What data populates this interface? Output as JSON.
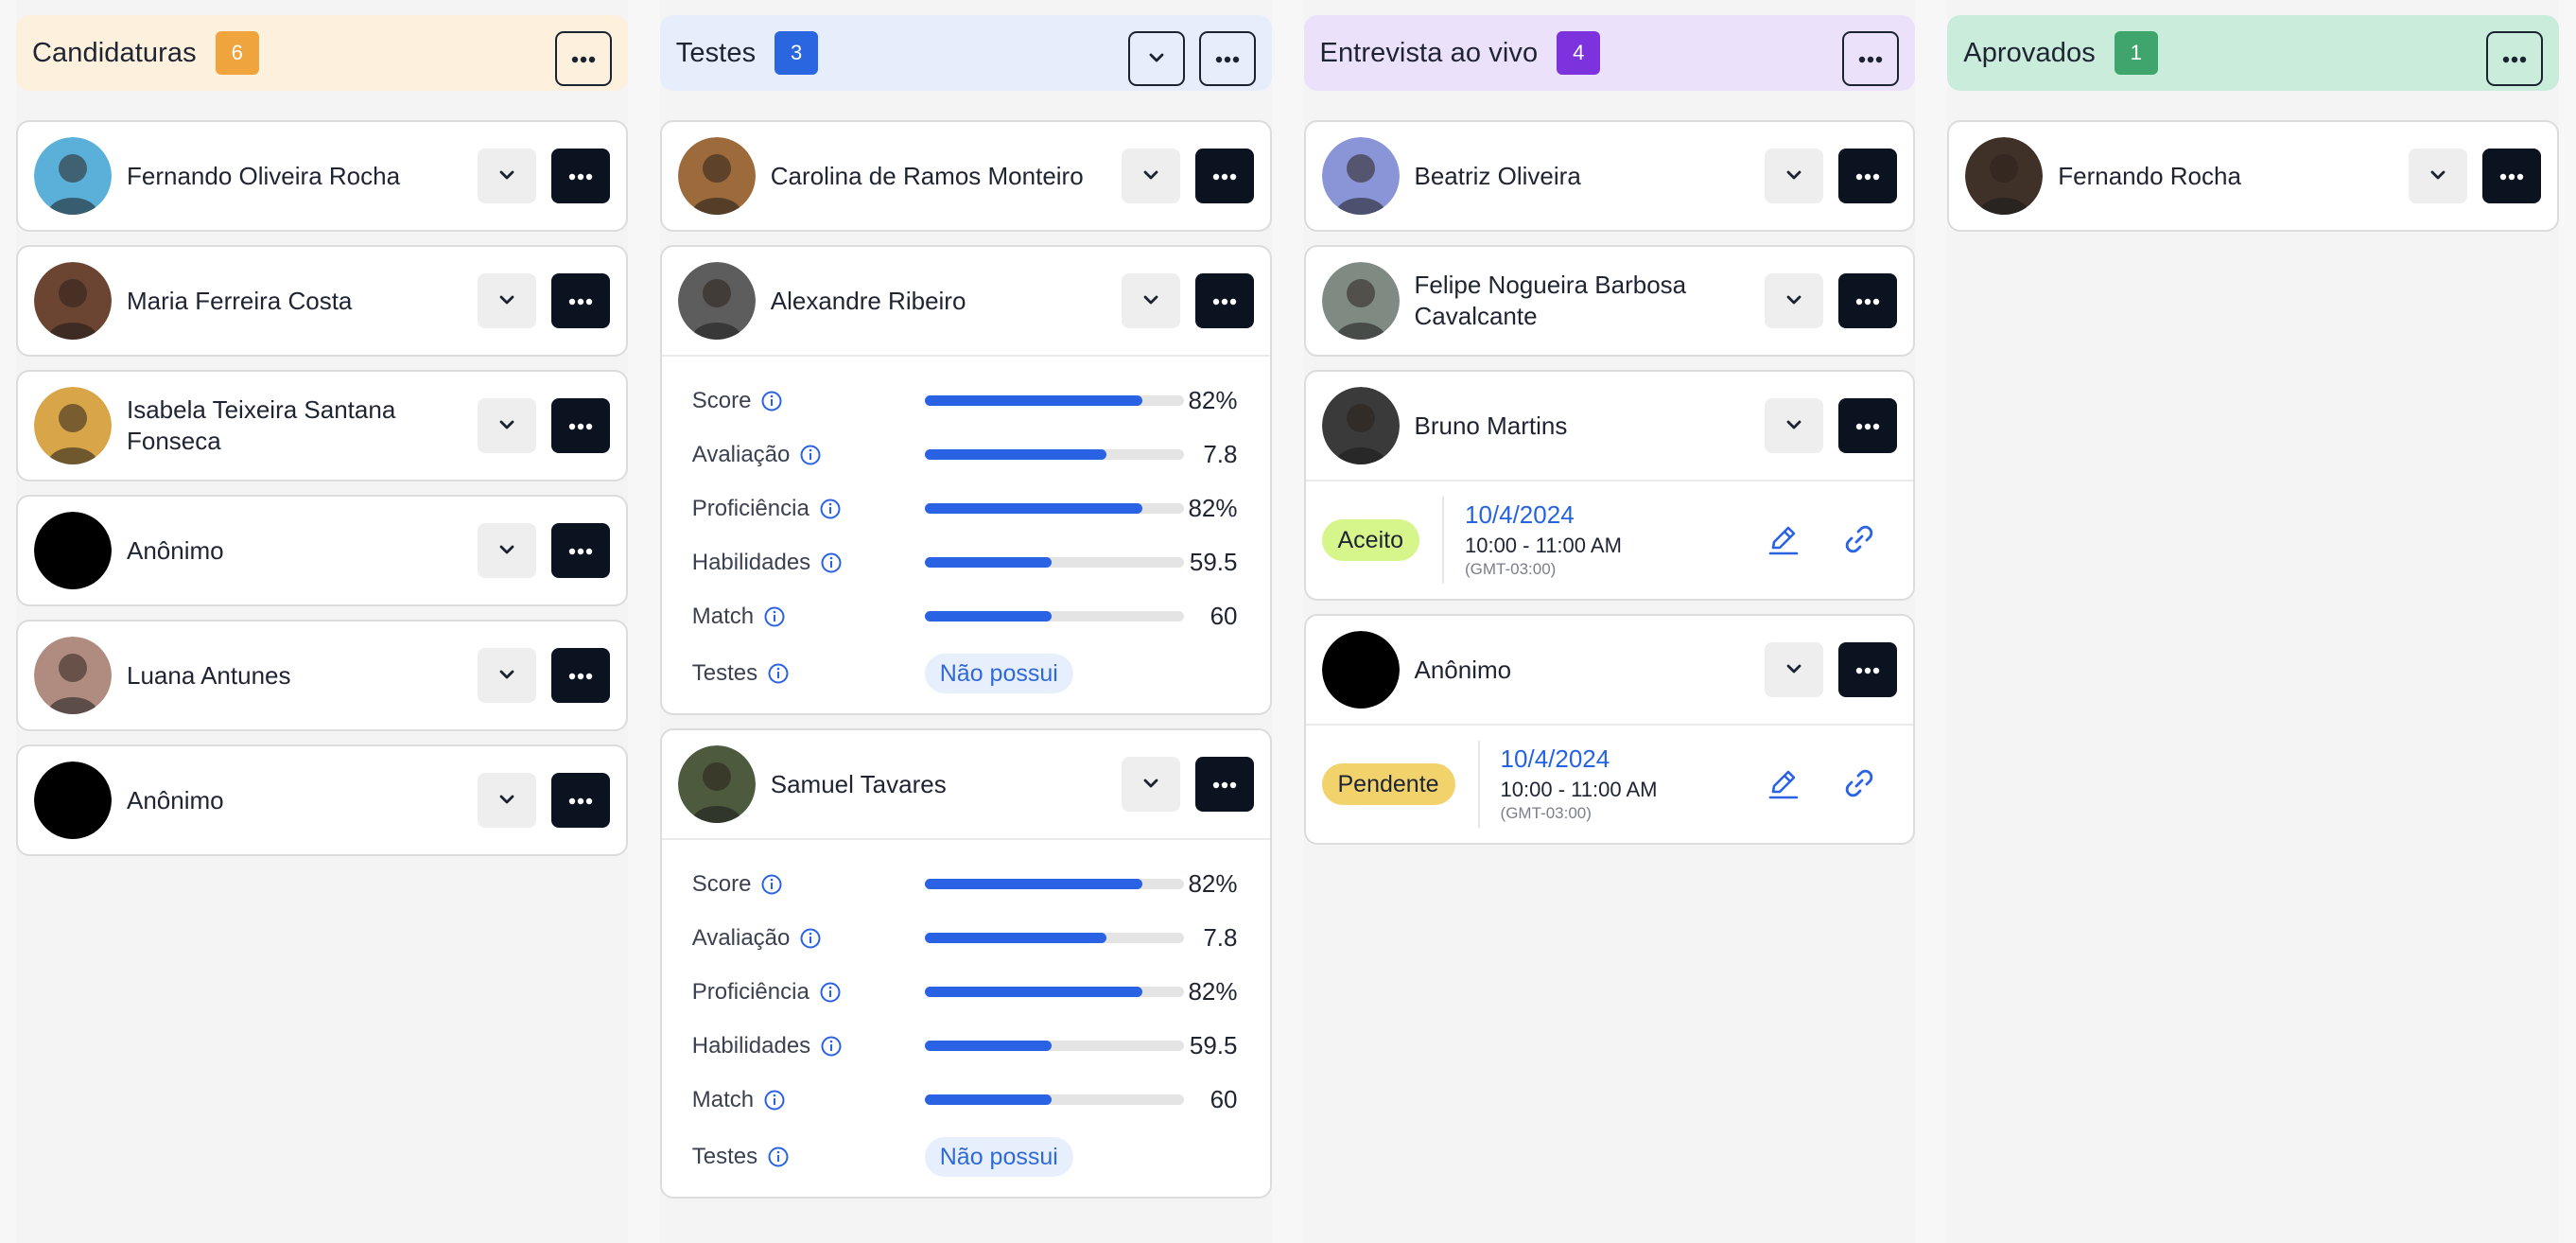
{
  "colors": {
    "accent_blue": "#2a62e4",
    "dark_button": "#0b1320"
  },
  "columns": [
    {
      "title": "Candidaturas",
      "count": "6",
      "header_bg": "#fdf0dc",
      "badge_color": "#efa43d",
      "has_collapse": false,
      "cards": [
        {
          "name": "Fernando Oliveira Rocha",
          "avatar": "photo",
          "avatar_color": "#5ab0d9"
        },
        {
          "name": "Maria Ferreira Costa",
          "avatar": "photo",
          "avatar_color": "#6b4432"
        },
        {
          "name": "Isabela Teixeira Santana Fonseca",
          "avatar": "photo",
          "avatar_color": "#d8a548"
        },
        {
          "name": "Anônimo",
          "avatar": "blank",
          "avatar_color": "#000000"
        },
        {
          "name": "Luana Antunes",
          "avatar": "photo",
          "avatar_color": "#b08c80"
        },
        {
          "name": "Anônimo",
          "avatar": "blank",
          "avatar_color": "#000000"
        }
      ]
    },
    {
      "title": "Testes",
      "count": "3",
      "header_bg": "#e6eefb",
      "badge_color": "#2a66e0",
      "has_collapse": true,
      "cards": [
        {
          "name": "Carolina de Ramos Monteiro",
          "avatar": "photo",
          "avatar_color": "#9c6a3b"
        },
        {
          "name": "Alexandre Ribeiro",
          "avatar": "photo",
          "avatar_color": "#5d5d5d",
          "metrics": [
            {
              "label": "Score",
              "fill": 0.84,
              "value": "82%"
            },
            {
              "label": "Avaliação",
              "fill": 0.7,
              "value": "7.8"
            },
            {
              "label": "Proficiência",
              "fill": 0.84,
              "value": "82%"
            },
            {
              "label": "Habilidades",
              "fill": 0.49,
              "value": "59.5"
            },
            {
              "label": "Match",
              "fill": 0.49,
              "value": "60"
            }
          ],
          "tests_label": "Testes",
          "tests_value": "Não possui"
        },
        {
          "name": "Samuel Tavares",
          "avatar": "photo",
          "avatar_color": "#4d5a3e",
          "metrics": [
            {
              "label": "Score",
              "fill": 0.84,
              "value": "82%"
            },
            {
              "label": "Avaliação",
              "fill": 0.7,
              "value": "7.8"
            },
            {
              "label": "Proficiência",
              "fill": 0.84,
              "value": "82%"
            },
            {
              "label": "Habilidades",
              "fill": 0.49,
              "value": "59.5"
            },
            {
              "label": "Match",
              "fill": 0.49,
              "value": "60"
            }
          ],
          "tests_label": "Testes",
          "tests_value": "Não possui"
        }
      ]
    },
    {
      "title": "Entrevista ao vivo",
      "count": "4",
      "header_bg": "#ece1fa",
      "badge_color": "#7c32dc",
      "has_collapse": false,
      "cards": [
        {
          "name": "Beatriz Oliveira",
          "avatar": "photo",
          "avatar_color": "#8a95d8"
        },
        {
          "name": "Felipe Nogueira Barbosa Cavalcante",
          "avatar": "photo",
          "avatar_color": "#7f8a83"
        },
        {
          "name": "Bruno Martins",
          "avatar": "photo",
          "avatar_color": "#3a3a3a",
          "schedule": {
            "status": "Aceito",
            "status_bg": "#d6f58a",
            "date": "10/4/2024",
            "time": "10:00 - 11:00 AM",
            "tz": "(GMT-03:00)"
          }
        },
        {
          "name": "Anônimo",
          "avatar": "blank",
          "avatar_color": "#000000",
          "schedule": {
            "status": "Pendente",
            "status_bg": "#f2d26a",
            "date": "10/4/2024",
            "time": "10:00 - 11:00 AM",
            "tz": "(GMT-03:00)"
          }
        }
      ]
    },
    {
      "title": "Aprovados",
      "count": "1",
      "header_bg": "#c9ecdb",
      "badge_color": "#3fa56c",
      "has_collapse": false,
      "cards": [
        {
          "name": "Fernando Rocha",
          "avatar": "photo",
          "avatar_color": "#3f3128"
        }
      ]
    }
  ]
}
